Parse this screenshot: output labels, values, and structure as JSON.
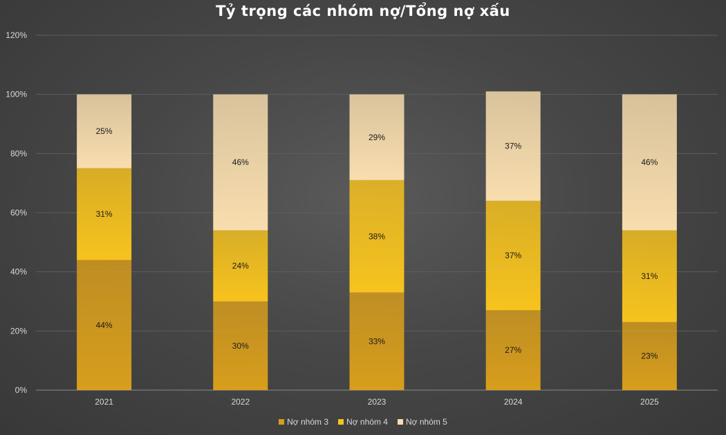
{
  "chart_data": {
    "type": "bar",
    "stacked": true,
    "title": "Tỷ trọng các nhóm nợ/Tổng nợ xấu",
    "categories": [
      "2021",
      "2022",
      "2023",
      "2024",
      "2025"
    ],
    "series": [
      {
        "name": "Nợ nhóm 3",
        "values": [
          44,
          30,
          33,
          27,
          23
        ],
        "labels": [
          "44%",
          "30%",
          "33%",
          "27%",
          "23%"
        ],
        "color": "#D89E1C"
      },
      {
        "name": "Nợ nhóm 4",
        "values": [
          31,
          24,
          38,
          37,
          31
        ],
        "labels": [
          "31%",
          "24%",
          "38%",
          "37%",
          "31%"
        ],
        "color": "#F7C31E"
      },
      {
        "name": "Nợ nhóm 5",
        "values": [
          25,
          46,
          29,
          37,
          46
        ],
        "labels": [
          "25%",
          "46%",
          "29%",
          "37%",
          "46%"
        ],
        "color": "#F8DDAE"
      }
    ],
    "y_ticks": [
      "0%",
      "20%",
      "40%",
      "60%",
      "80%",
      "100%",
      "120%"
    ],
    "ylim": [
      0,
      120
    ],
    "grid": true,
    "legend_position": "bottom",
    "background": "#474747"
  }
}
